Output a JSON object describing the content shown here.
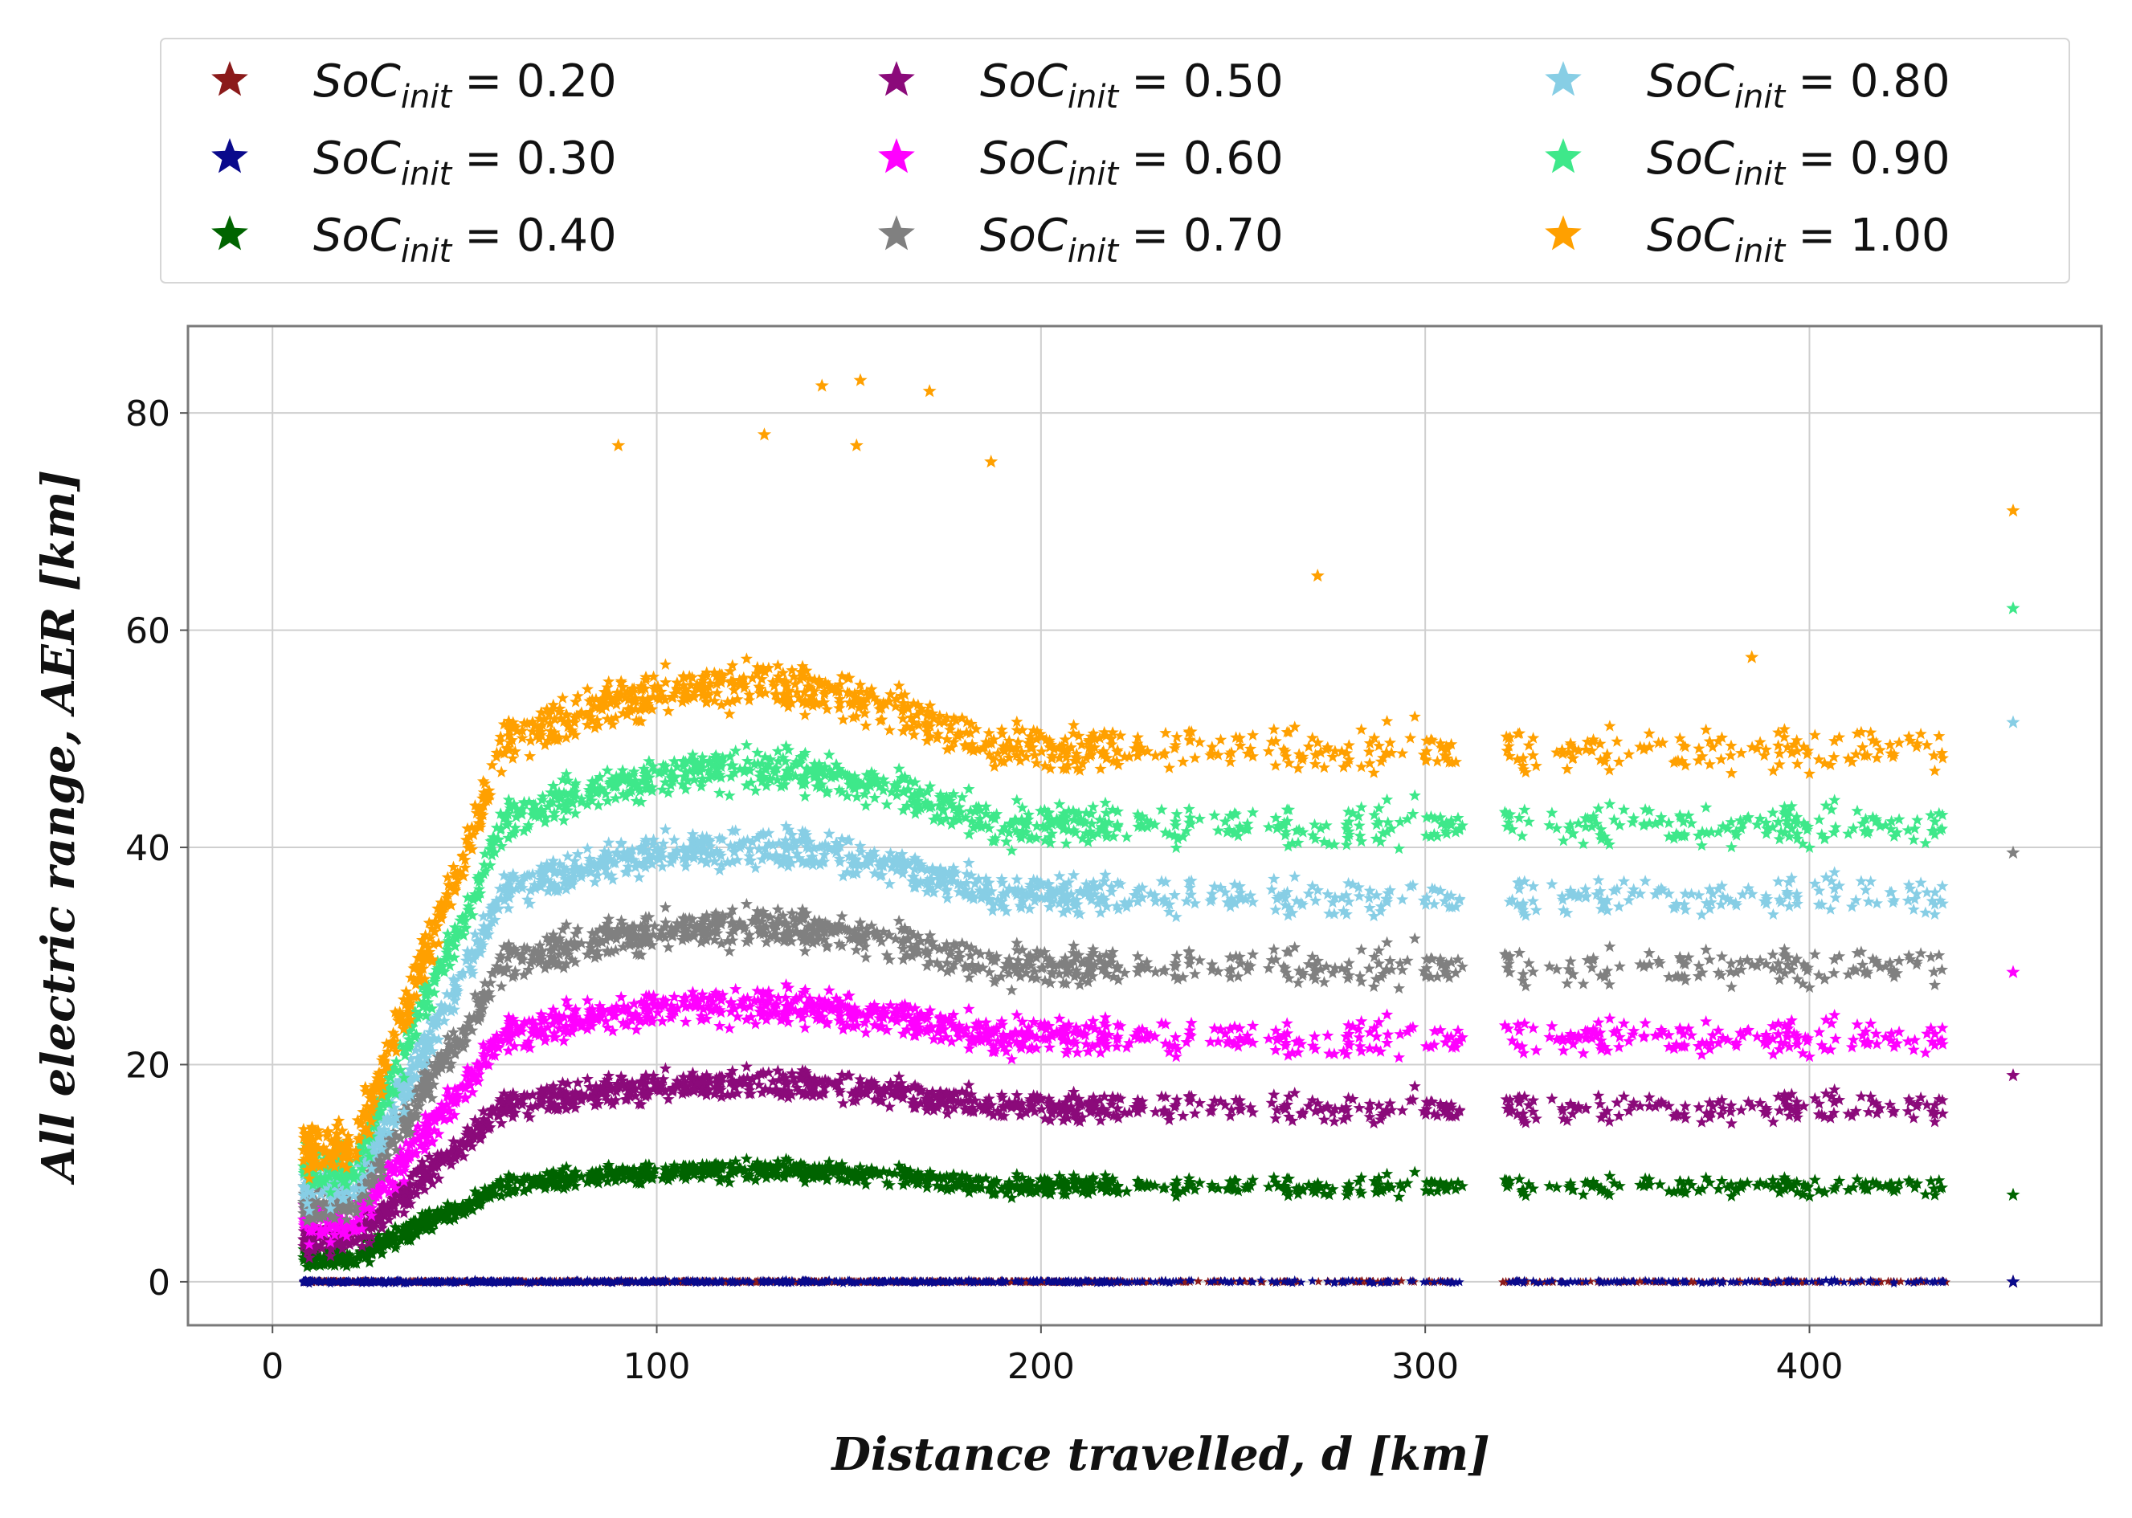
{
  "chart_data": {
    "type": "scatter",
    "title": "",
    "xlabel": "Distance travelled, d [km]",
    "ylabel": "All electric range, AER [km]",
    "xlim": [
      -22,
      476
    ],
    "ylim": [
      -4,
      88
    ],
    "xticks": [
      0,
      100,
      200,
      300,
      400
    ],
    "yticks": [
      0,
      20,
      40,
      60,
      80
    ],
    "grid": true,
    "legend_position": "top",
    "legend_columns": 3,
    "legend_label_prefix": "SoC",
    "legend_label_sub": "init",
    "series": [
      {
        "name": "SoC_init = 0.20",
        "value_label": "= 0.20",
        "color": "#8b1a1a",
        "band_center": 0.0,
        "band_spread": 0.1
      },
      {
        "name": "SoC_init = 0.30",
        "value_label": "= 0.30",
        "color": "#0a0a8c",
        "band_center": 0.0,
        "band_spread": 0.25
      },
      {
        "name": "SoC_init = 0.40",
        "value_label": "= 0.40",
        "color": "#006400",
        "band_center": 8.8,
        "band_spread": 1.5
      },
      {
        "name": "SoC_init = 0.50",
        "value_label": "= 0.50",
        "color": "#8b0a7a",
        "band_center": 16.0,
        "band_spread": 2.3
      },
      {
        "name": "SoC_init = 0.60",
        "value_label": "= 0.60",
        "color": "#ff00ff",
        "band_center": 22.5,
        "band_spread": 2.8
      },
      {
        "name": "SoC_init = 0.70",
        "value_label": "= 0.70",
        "color": "#808080",
        "band_center": 29.0,
        "band_spread": 3.0
      },
      {
        "name": "SoC_init = 0.80",
        "value_label": "= 0.80",
        "color": "#87cee5",
        "band_center": 35.5,
        "band_spread": 3.0
      },
      {
        "name": "SoC_init = 0.90",
        "value_label": "= 0.90",
        "color": "#3ee88a",
        "band_center": 42.0,
        "band_spread": 3.2
      },
      {
        "name": "SoC_init = 1.00",
        "value_label": "= 1.00",
        "color": "#ffa000",
        "band_center": 49.0,
        "band_spread": 3.5
      }
    ],
    "notes": "Dense point clouds; each series rises with distance from ~10 km to ~60 km, then levels off near band_center out to ~435 km, with an isolated column at ~453 km (e.g. 1.00 at 71, 0.90 at 62, 0.80 at 51.5, 0.70 at 39.5, 0.60 at 28.5, 0.50 at 19, 0.40 at 8, 0.30 at 0). SoC 1.00 peaks around 83 km AER near d = 150 km."
  }
}
